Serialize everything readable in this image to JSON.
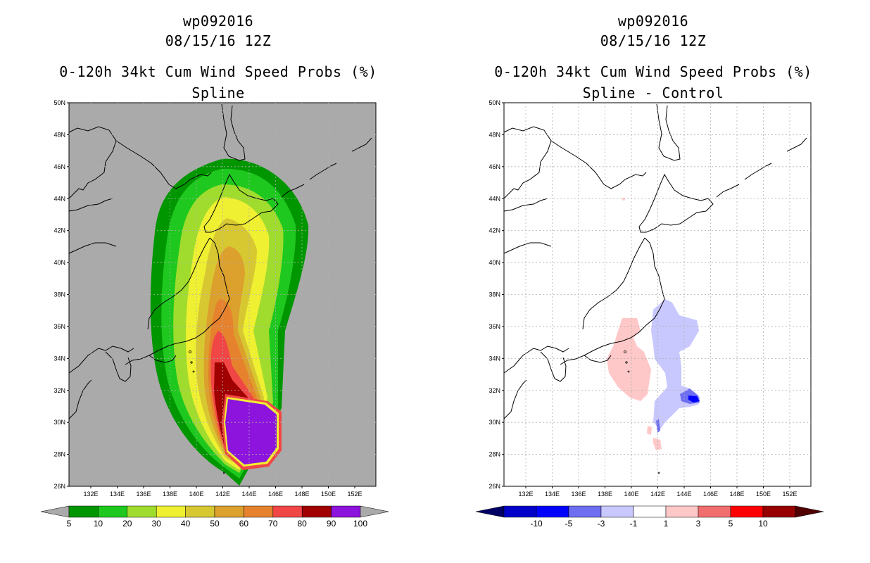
{
  "left_panel": {
    "title_line1": "wp092016",
    "title_line2": "08/15/16 12Z",
    "title_line3": "0-120h 34kt Cum Wind Speed Probs (%)",
    "title_line4": "Spline",
    "colorbar": {
      "colors": [
        "#009600",
        "#1ec81e",
        "#a0dc2d",
        "#f0f032",
        "#d7c832",
        "#dca02d",
        "#e6822d",
        "#f04646",
        "#a00000",
        "#8c14dc"
      ],
      "labels": [
        "5",
        "10",
        "20",
        "30",
        "40",
        "50",
        "60",
        "70",
        "80",
        "90",
        "100"
      ]
    }
  },
  "right_panel": {
    "title_line1": "wp092016",
    "title_line2": "08/15/16 12Z",
    "title_line3": "0-120h 34kt Cum Wind Speed Probs (%)",
    "title_line4": "Spline - Control",
    "colorbar": {
      "colors": [
        "#0000c8",
        "#0000ff",
        "#6e6ef0",
        "#c8c8ff",
        "#ffffff",
        "#ffc8c8",
        "#f06e6e",
        "#ff0000",
        "#960000"
      ],
      "labels": [
        "-10",
        "-5",
        "-3",
        "-1",
        "1",
        "3",
        "5",
        "10"
      ]
    }
  },
  "axes": {
    "lat_labels": [
      "50N",
      "48N",
      "46N",
      "44N",
      "42N",
      "40N",
      "38N",
      "36N",
      "34N",
      "32N",
      "30N",
      "28N",
      "26N"
    ],
    "lon_labels": [
      "132E",
      "134E",
      "136E",
      "138E",
      "140E",
      "142E",
      "144E",
      "146E",
      "148E",
      "150E",
      "152E"
    ]
  },
  "colors": {
    "land_sea_bg_left": "#aaaaaa",
    "bg_right": "#ffffff",
    "coast": "#000000",
    "grid": "#b0b0b0"
  }
}
